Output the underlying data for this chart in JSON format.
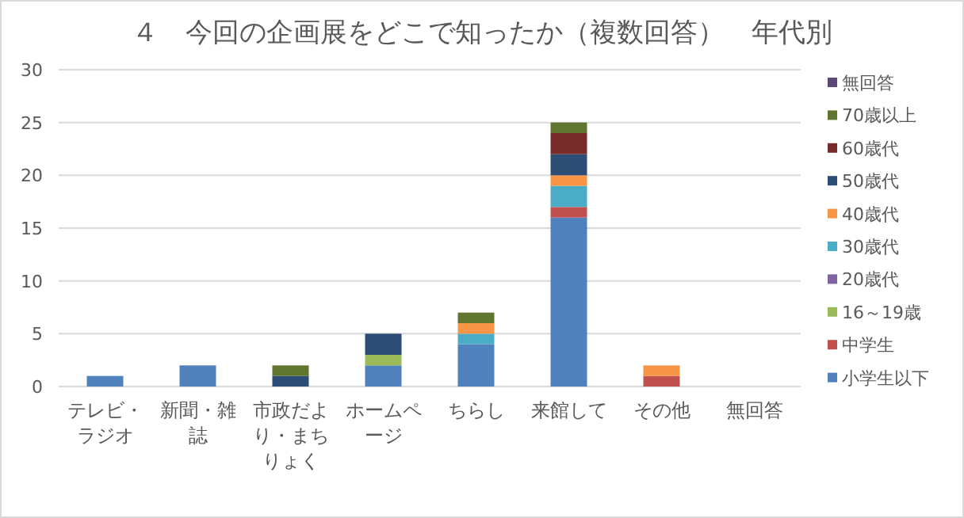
{
  "chart_data": {
    "type": "bar",
    "title": "４　今回の企画展をどこで知ったか（複数回答）　年代別",
    "stacked": true,
    "categories": [
      "テレビ・ラジオ",
      "新聞・雑誌",
      "市政だより・まちりょく",
      "ホームページ",
      "ちらし",
      "来館して",
      "その他",
      "無回答"
    ],
    "series": [
      {
        "name": "小学生以下",
        "color": "#4f81bd",
        "values": [
          1,
          2,
          0,
          2,
          4,
          16,
          0,
          0
        ]
      },
      {
        "name": "中学生",
        "color": "#c0504d",
        "values": [
          0,
          0,
          0,
          0,
          0,
          1,
          1,
          0
        ]
      },
      {
        "name": "16～19歳",
        "color": "#9bbb59",
        "values": [
          0,
          0,
          0,
          1,
          0,
          0,
          0,
          0
        ]
      },
      {
        "name": "20歳代",
        "color": "#8064a2",
        "values": [
          0,
          0,
          0,
          0,
          0,
          0,
          0,
          0
        ]
      },
      {
        "name": "30歳代",
        "color": "#4bacc6",
        "values": [
          0,
          0,
          0,
          0,
          1,
          2,
          0,
          0
        ]
      },
      {
        "name": "40歳代",
        "color": "#f79646",
        "values": [
          0,
          0,
          0,
          0,
          1,
          1,
          1,
          0
        ]
      },
      {
        "name": "50歳代",
        "color": "#2c4d75",
        "values": [
          0,
          0,
          1,
          2,
          0,
          2,
          0,
          0
        ]
      },
      {
        "name": "60歳代",
        "color": "#772c2a",
        "values": [
          0,
          0,
          0,
          0,
          0,
          2,
          0,
          0
        ]
      },
      {
        "name": "70歳以上",
        "color": "#5f7530",
        "values": [
          0,
          0,
          1,
          0,
          1,
          1,
          0,
          0
        ]
      },
      {
        "name": "無回答",
        "color": "#5c4776",
        "values": [
          0,
          0,
          0,
          0,
          0,
          0,
          0,
          0
        ]
      }
    ],
    "ylim": [
      0,
      30
    ],
    "yticks": [
      0,
      5,
      10,
      15,
      20,
      25,
      30
    ],
    "grid": "y",
    "legend": "right"
  }
}
